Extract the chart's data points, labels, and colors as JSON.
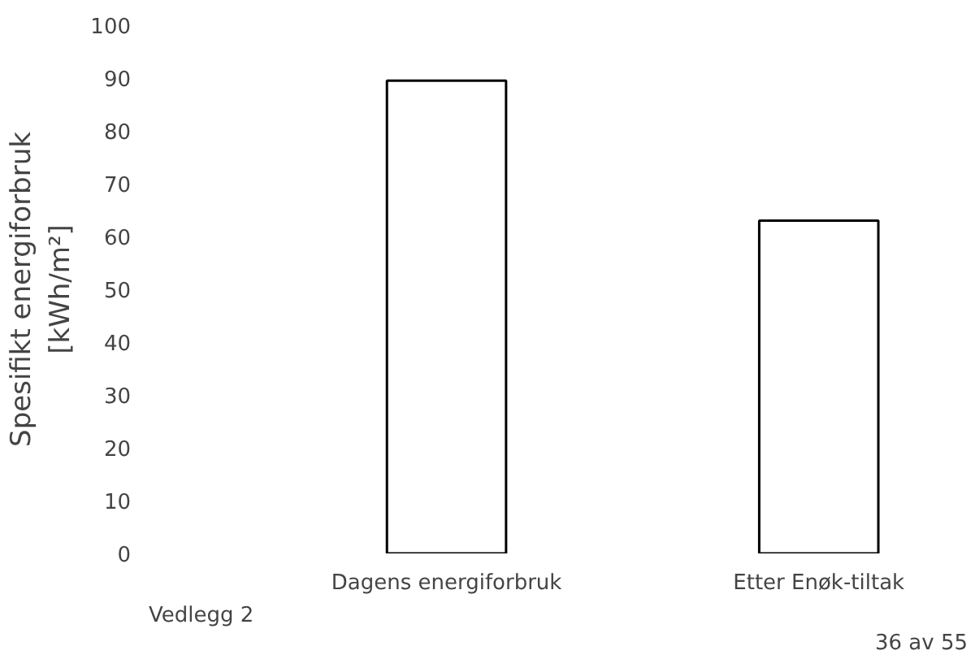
{
  "chart_data": {
    "type": "bar",
    "ylabel": "Spesifikt energiforbruk\n[kWh/m²]",
    "categories": [
      "Dagens energiforbruk",
      "Etter Enøk-tiltak"
    ],
    "values": [
      89.5,
      63
    ],
    "color": "#ffffff",
    "ylim": [
      0,
      100
    ],
    "yticks": [
      0,
      10,
      20,
      30,
      40,
      50,
      60,
      70,
      80,
      90,
      100
    ],
    "grid": false,
    "annotations": [
      "Vedlegg 2",
      "36 av 55"
    ]
  }
}
